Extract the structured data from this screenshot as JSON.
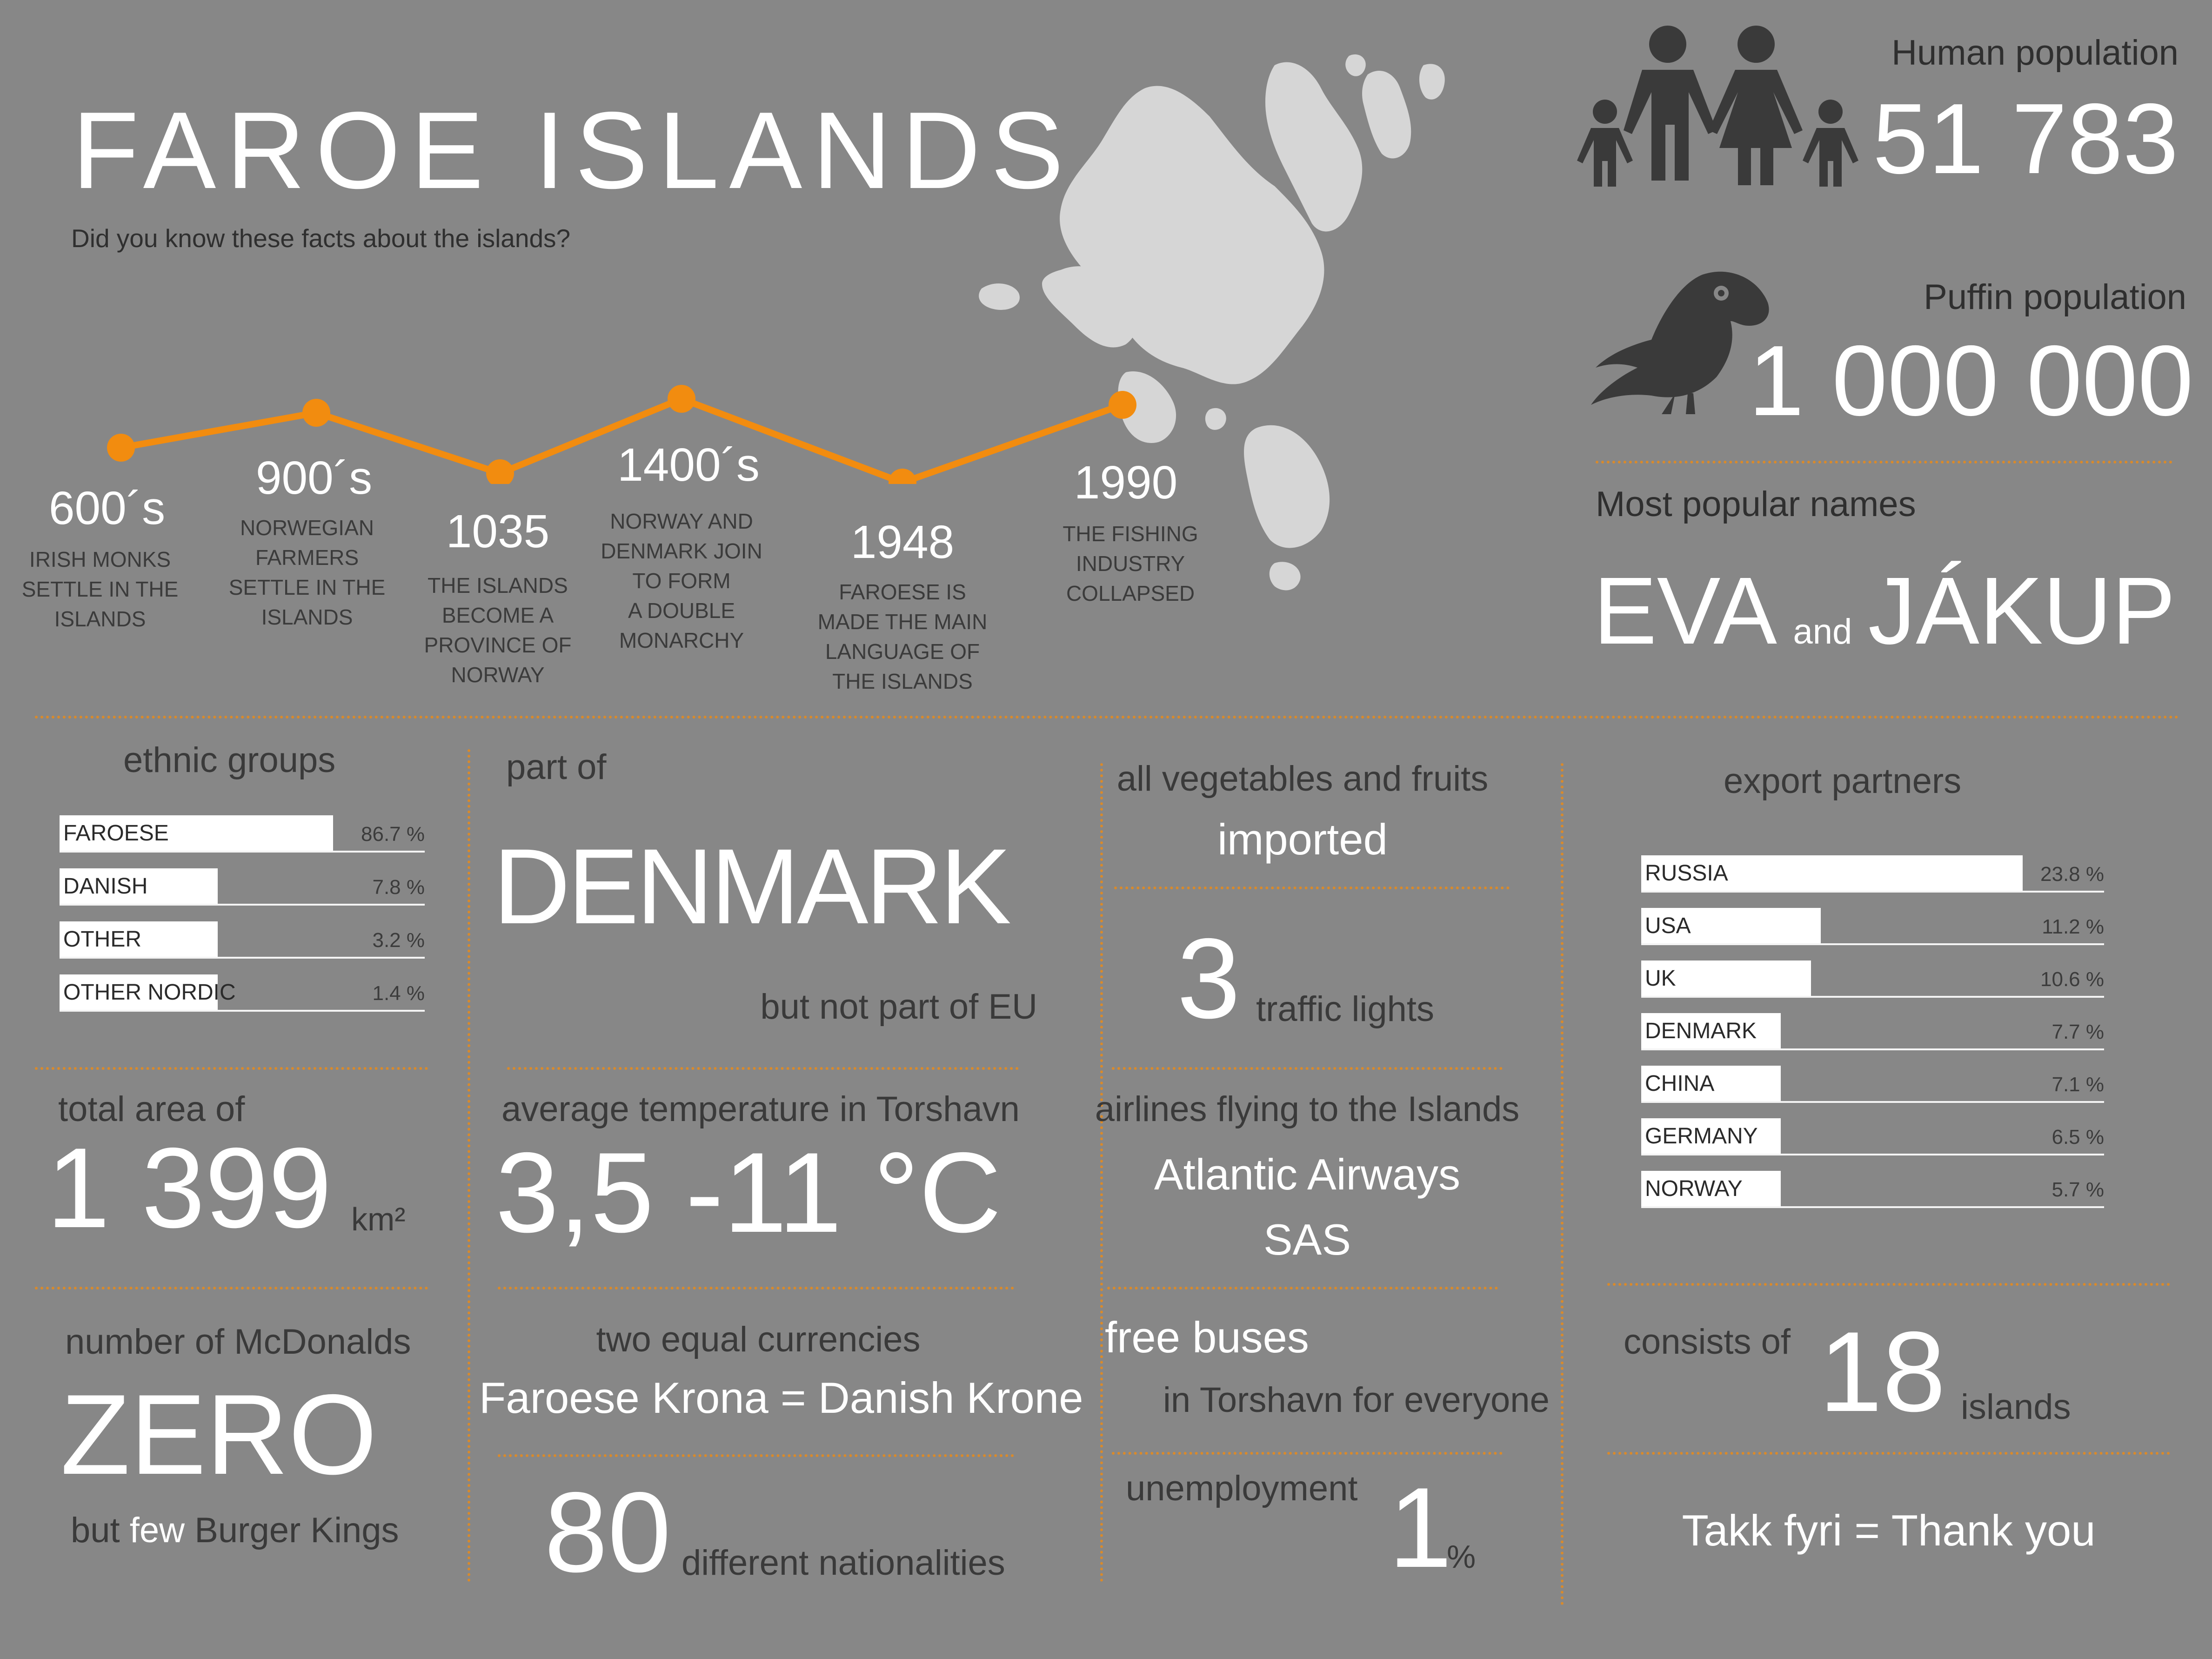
{
  "title": "FAROE ISLANDS",
  "subtitle": "Did you know these facts about the islands?",
  "human_population": {
    "label": "Human population",
    "value": "51 783"
  },
  "puffin_population": {
    "label": "Puffin population",
    "value": "1 000 000"
  },
  "popular_names": {
    "label": "Most popular names",
    "name1": "EVA",
    "and": "and",
    "name2": "JÁKUP"
  },
  "timeline": [
    {
      "year": "600´s",
      "text": [
        "IRISH MONKS",
        "SETTLE IN THE",
        "ISLANDS"
      ]
    },
    {
      "year": "900´s",
      "text": [
        "NORWEGIAN",
        "FARMERS",
        "SETTLE IN THE",
        "ISLANDS"
      ]
    },
    {
      "year": "1035",
      "text": [
        "THE ISLANDS",
        "BECOME A",
        "PROVINCE OF",
        "NORWAY"
      ]
    },
    {
      "year": "1400´s",
      "text": [
        "NORWAY AND",
        "DENMARK JOIN",
        "TO FORM",
        "A DOUBLE",
        "MONARCHY"
      ]
    },
    {
      "year": "1948",
      "text": [
        "FAROESE IS",
        "MADE THE MAIN",
        "LANGUAGE OF",
        "THE ISLANDS"
      ]
    },
    {
      "year": "1990",
      "text": [
        "THE FISHING",
        "INDUSTRY",
        "COLLAPSED"
      ]
    }
  ],
  "ethnic_groups": {
    "title": "ethnic groups",
    "rows": [
      {
        "label": "FAROESE",
        "value": 86.7,
        "pct": "86.7 %"
      },
      {
        "label": "DANISH",
        "value": 7.8,
        "pct": "7.8 %"
      },
      {
        "label": "OTHER",
        "value": 3.2,
        "pct": "3.2 %"
      },
      {
        "label": "OTHER NORDIC",
        "value": 1.4,
        "pct": "1.4 %"
      }
    ]
  },
  "part_of": {
    "label": "part of",
    "value": "DENMARK",
    "note": "but not part of EU"
  },
  "vegetables": {
    "line1": "all vegetables and fruits",
    "line2": "imported"
  },
  "traffic": {
    "value": "3",
    "label": "traffic lights"
  },
  "export_partners": {
    "title": "export partners",
    "rows": [
      {
        "label": "RUSSIA",
        "value": 23.8,
        "pct": "23.8 %"
      },
      {
        "label": "USA",
        "value": 11.2,
        "pct": "11.2 %"
      },
      {
        "label": "UK",
        "value": 10.6,
        "pct": "10.6 %"
      },
      {
        "label": "DENMARK",
        "value": 7.7,
        "pct": "7.7 %"
      },
      {
        "label": "CHINA",
        "value": 7.1,
        "pct": "7.1 %"
      },
      {
        "label": "GERMANY",
        "value": 6.5,
        "pct": "6.5 %"
      },
      {
        "label": "NORWAY",
        "value": 5.7,
        "pct": "5.7 %"
      }
    ]
  },
  "area": {
    "label": "total area of",
    "value": "1 399",
    "unit": "km²"
  },
  "temperature": {
    "label": "average temperature in Torshavn",
    "value": "3,5 -11 °C"
  },
  "airlines": {
    "label": "airlines flying to the Islands",
    "items": [
      "Atlantic Airways",
      "SAS"
    ]
  },
  "mcdonalds": {
    "label": "number of McDonalds",
    "value": "ZERO",
    "note_but": "but",
    "note_few": "few",
    "note_rest": "Burger Kings"
  },
  "currencies": {
    "label": "two equal currencies",
    "value": "Faroese Krona = Danish Krone"
  },
  "nationalities": {
    "value": "80",
    "label": "different nationalities"
  },
  "buses": {
    "line1": "free buses",
    "line2": "in Torshavn for everyone"
  },
  "unemployment": {
    "label": "unemployment",
    "value": "1",
    "unit": "%"
  },
  "islands": {
    "label": "consists of",
    "value": "18",
    "unit": "islands"
  },
  "thanks": "Takk fyri = Thank you",
  "colors": {
    "background": "#878787",
    "accent": "#f28c0f",
    "dots": "#d98a2b",
    "map": "#d6d6d6",
    "icon": "#3a3a3a"
  }
}
